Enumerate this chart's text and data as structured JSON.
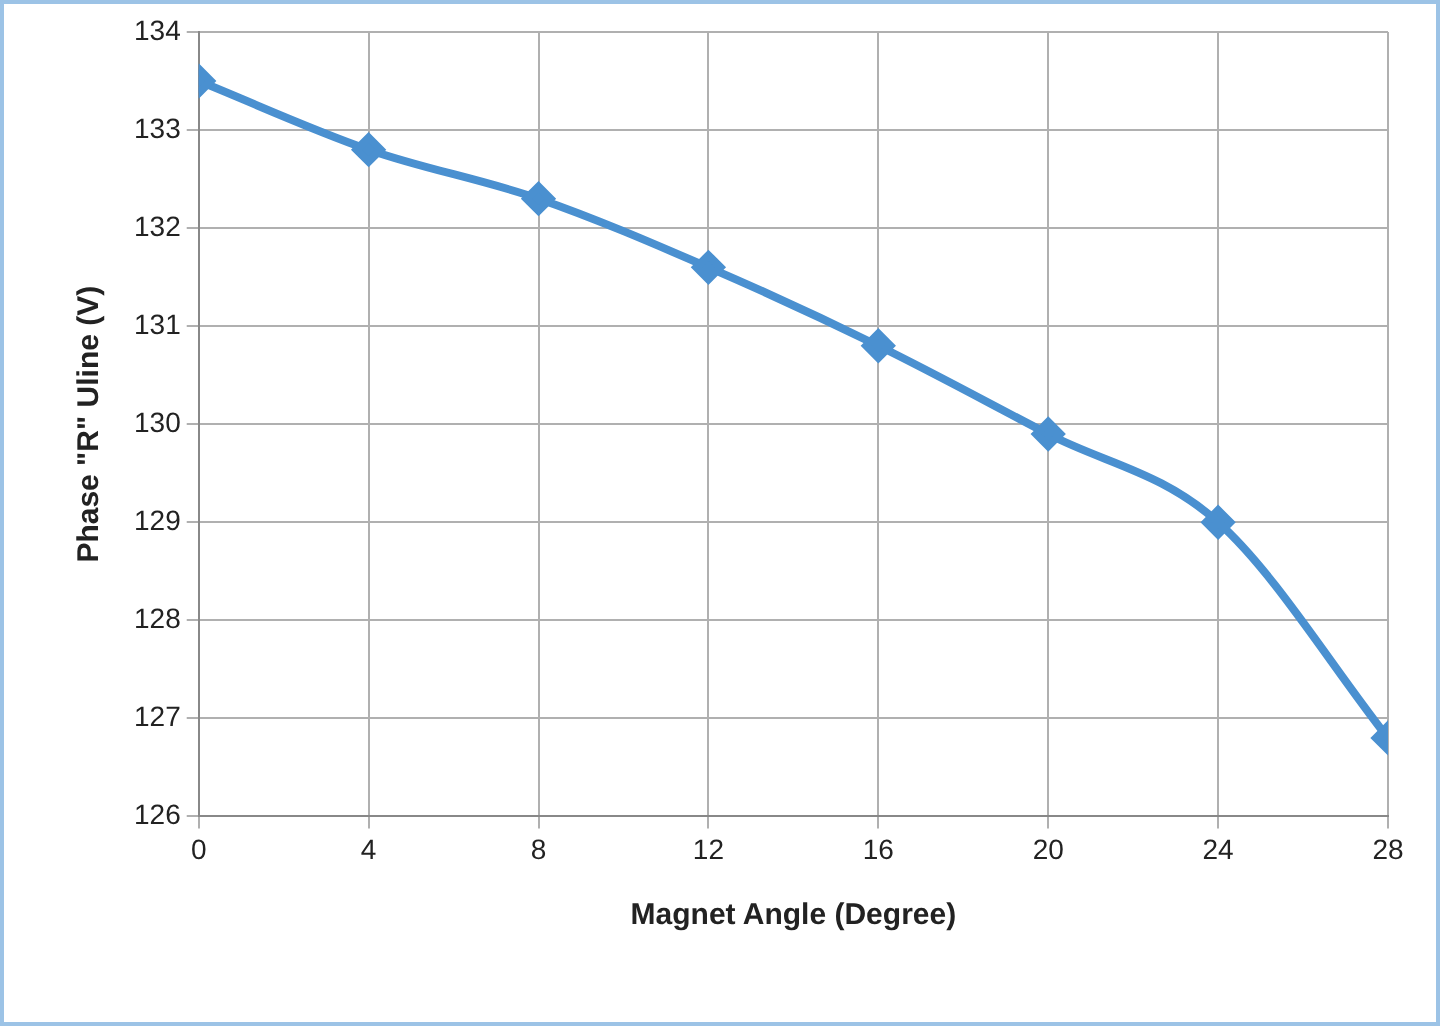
{
  "chart_data": {
    "type": "line",
    "xlabel": "Magnet Angle (Degree)",
    "ylabel": "Phase \"R\" Uline (V)",
    "x": [
      0,
      4,
      8,
      12,
      16,
      20,
      24,
      28
    ],
    "series": [
      {
        "color": "#4a90d0",
        "values": [
          133.5,
          132.8,
          132.3,
          131.6,
          130.8,
          129.9,
          129.0,
          126.8
        ]
      }
    ],
    "xlim": [
      0,
      28
    ],
    "xticks": [
      0,
      4,
      8,
      12,
      16,
      20,
      24,
      28
    ],
    "ylim": [
      126,
      134
    ],
    "yticks": [
      126,
      127,
      128,
      129,
      130,
      131,
      132,
      133,
      134
    ],
    "grid": true,
    "legend": false,
    "marker": "diamond",
    "line_style": "solid"
  }
}
